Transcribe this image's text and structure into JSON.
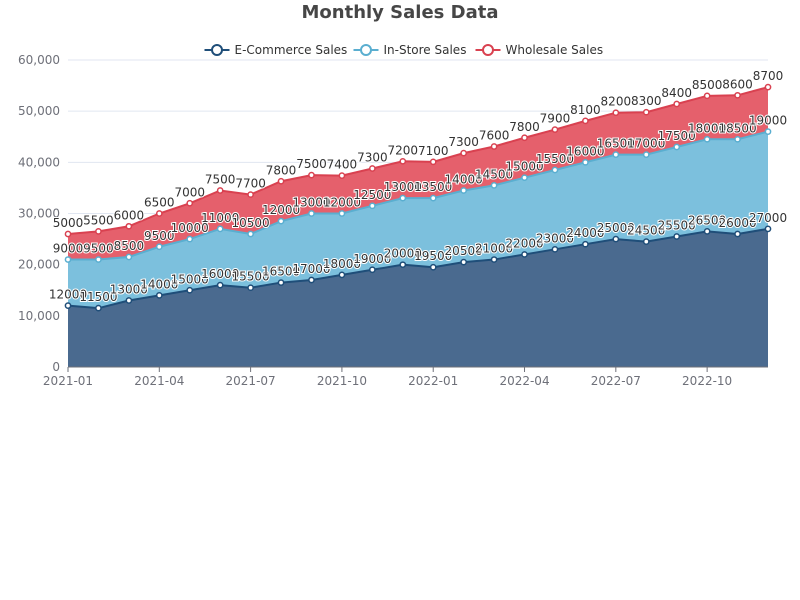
{
  "chart_data": {
    "type": "area",
    "stacked": true,
    "title": "Monthly Sales Data",
    "x": [
      "2021-01",
      "2021-02",
      "2021-03",
      "2021-04",
      "2021-05",
      "2021-06",
      "2021-07",
      "2021-08",
      "2021-09",
      "2021-10",
      "2021-11",
      "2021-12",
      "2022-01",
      "2022-02",
      "2022-03",
      "2022-04",
      "2022-05",
      "2022-06",
      "2022-07",
      "2022-08",
      "2022-09",
      "2022-10",
      "2022-11",
      "2022-12"
    ],
    "x_tick_labels": [
      "2021-01",
      "2021-04",
      "2021-07",
      "2021-10",
      "2022-01",
      "2022-04",
      "2022-07",
      "2022-10"
    ],
    "y_tick_labels": [
      "0",
      "10,000",
      "20,000",
      "30,000",
      "40,000",
      "50,000",
      "60,000"
    ],
    "ylim": [
      0,
      60000
    ],
    "grid": true,
    "legend_position": "top-center",
    "series": [
      {
        "name": "E-Commerce Sales",
        "color": "#1f4e79",
        "fill": "#4a6a8f",
        "values": [
          12000,
          11500,
          13000,
          14000,
          15000,
          16000,
          15500,
          16500,
          17000,
          18000,
          19000,
          20000,
          19500,
          20500,
          21000,
          22000,
          23000,
          24000,
          25000,
          24500,
          25500,
          26500,
          26000,
          27000
        ]
      },
      {
        "name": "In-Store Sales",
        "color": "#5aaed0",
        "fill": "#7cc0dd",
        "values": [
          9000,
          9500,
          8500,
          9500,
          10000,
          11000,
          10500,
          12000,
          13000,
          12000,
          12500,
          13000,
          13500,
          14000,
          14500,
          15000,
          15500,
          16000,
          16500,
          17000,
          17500,
          18000,
          18500,
          19000
        ]
      },
      {
        "name": "Wholesale Sales",
        "color": "#d94150",
        "fill": "#e5606c",
        "values": [
          5000,
          5500,
          6000,
          6500,
          7000,
          7500,
          7700,
          7800,
          7500,
          7400,
          7300,
          7200,
          7100,
          7300,
          7600,
          7800,
          7900,
          8100,
          8200,
          8300,
          8400,
          8500,
          8600,
          8700
        ]
      }
    ]
  }
}
